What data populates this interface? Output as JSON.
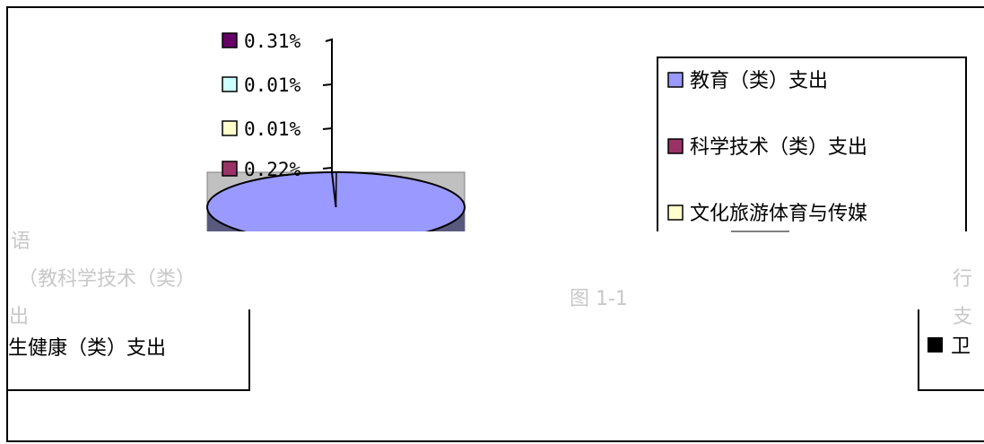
{
  "chart_data": {
    "type": "pie",
    "title": "",
    "slice_labels": [
      {
        "text": "0.31%",
        "color": "#660066"
      },
      {
        "text": "0.01%",
        "color": "#ccffff"
      },
      {
        "text": "0.01%",
        "color": "#ffffcc"
      },
      {
        "text": "0.22%",
        "color": "#993366"
      }
    ],
    "legend": {
      "placement": "right",
      "entries": [
        {
          "name": "教育（类）支出",
          "color": "#9999ff"
        },
        {
          "name": "科学技术（类）支出",
          "color": "#993366"
        },
        {
          "name": "文化旅游体育与传媒",
          "color": "#ffffcc"
        }
      ]
    },
    "second_legend": {
      "entries": [
        {
          "name": "生健康（类）支出"
        },
        {
          "name": "卫"
        }
      ]
    },
    "colors": {
      "main_slice": "#9999ff",
      "pie_side": "#59597f",
      "plot_bg": "#c0c0c0",
      "black_marker": "#000000"
    }
  }
}
